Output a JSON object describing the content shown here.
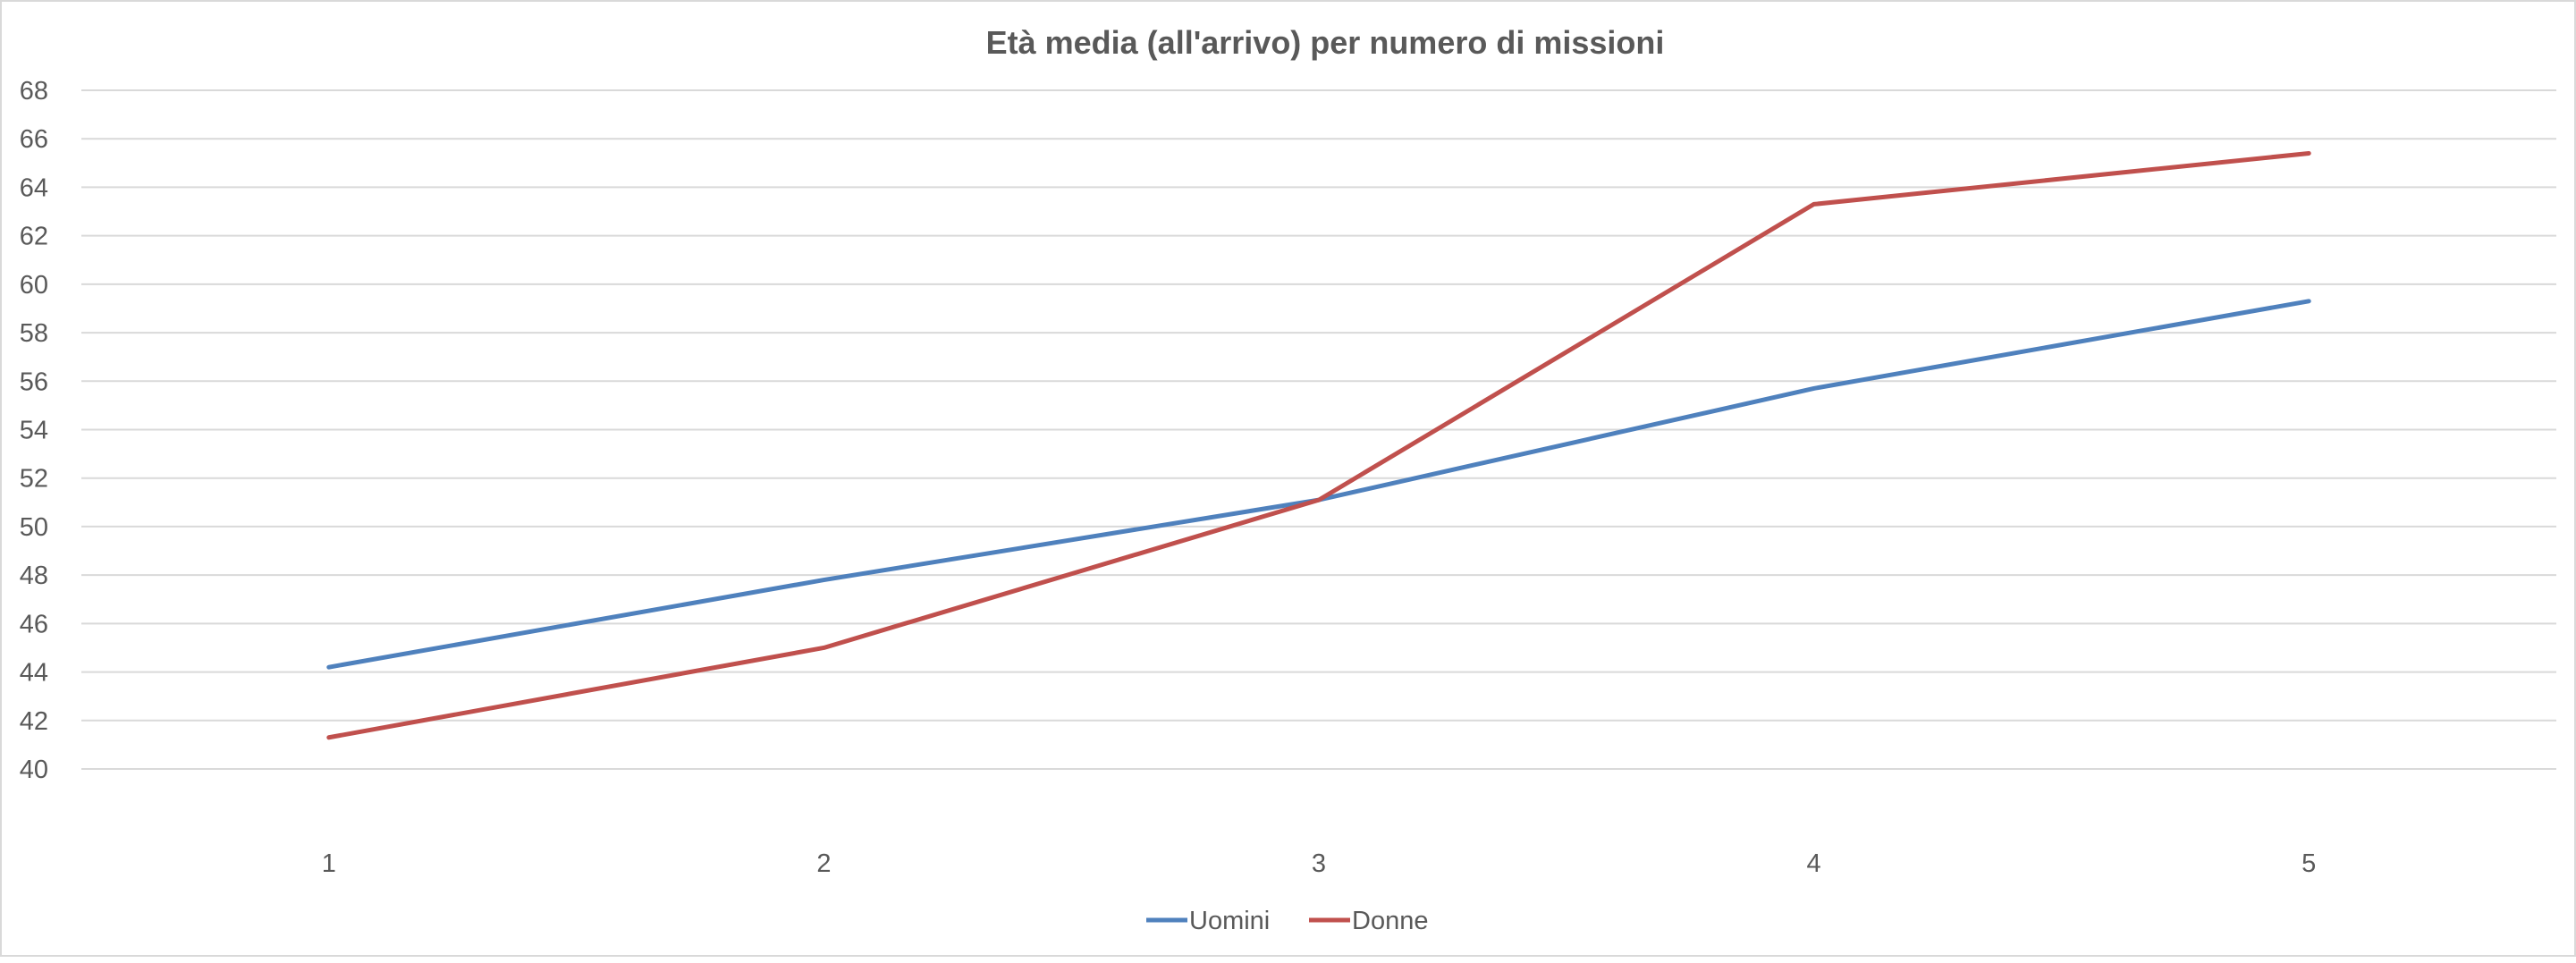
{
  "chart_data": {
    "type": "line",
    "title": "Età media (all'arrivo) per numero di missioni",
    "xlabel": "",
    "ylabel": "",
    "categories": [
      "1",
      "2",
      "3",
      "4",
      "5"
    ],
    "ylim": [
      40,
      68
    ],
    "yticks": [
      "40",
      "42",
      "44",
      "46",
      "48",
      "50",
      "52",
      "54",
      "56",
      "58",
      "60",
      "62",
      "64",
      "66",
      "68"
    ],
    "grid": true,
    "legend_position": "bottom",
    "series": [
      {
        "name": "Uomini",
        "color": "#4f81bd",
        "values": [
          44.2,
          47.8,
          51.1,
          55.7,
          59.3
        ]
      },
      {
        "name": "Donne",
        "color": "#c0504d",
        "values": [
          41.3,
          45.0,
          51.1,
          63.3,
          65.4
        ]
      }
    ]
  }
}
